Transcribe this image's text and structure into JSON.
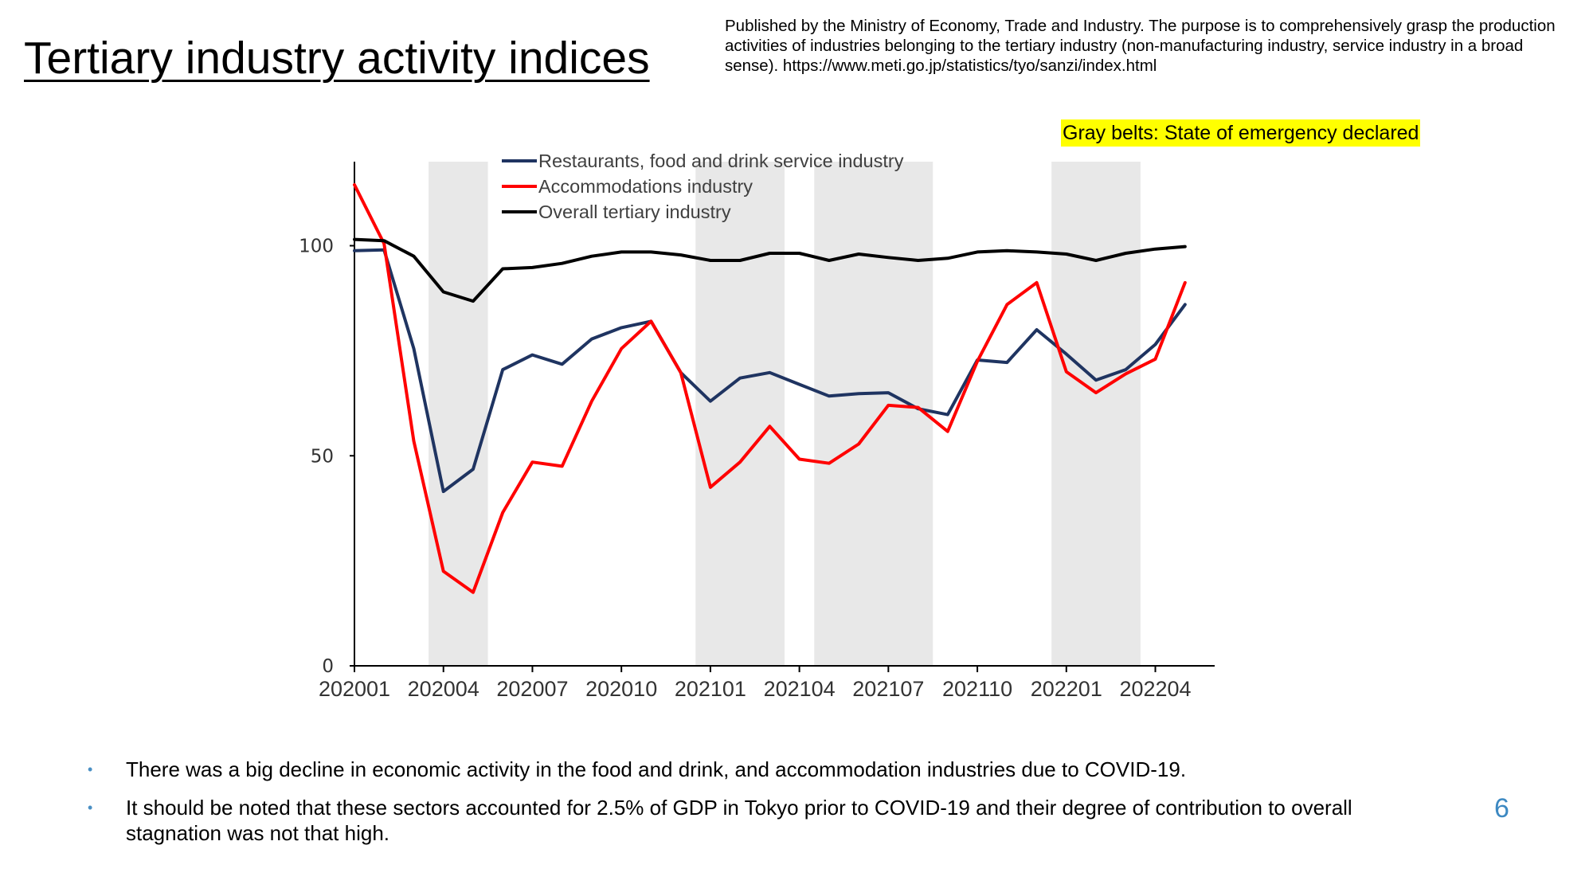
{
  "title": "Tertiary industry activity indices",
  "source_note": "Published by the Ministry of Economy, Trade and Industry. The purpose is to comprehensively grasp the production activities of industries belonging to the tertiary industry (non-manufacturing industry, service industry in a broad sense). https://www.meti.go.jp/statistics/tyo/sanzi/index.html",
  "emergency_note": "Gray belts: State of emergency declared",
  "bullets": [
    "There was a big decline in economic activity in the food and drink, and accommodation industries due to COVID-19.",
    "It should be noted that these sectors accounted for 2.5% of GDP in Tokyo prior to COVID-19 and their degree of contribution to overall stagnation was not that high."
  ],
  "page_number": "6",
  "colors": {
    "restaurants": "#1f3461",
    "accommodations": "#ff0000",
    "overall": "#000000",
    "belt": "#e8e8e8",
    "bullet": "#4a8fc4",
    "page_number": "#3d89c2",
    "highlight": "#ffff00"
  },
  "chart_data": {
    "type": "line",
    "x": [
      "202001",
      "202002",
      "202003",
      "202004",
      "202005",
      "202006",
      "202007",
      "202008",
      "202009",
      "202010",
      "202011",
      "202012",
      "202101",
      "202102",
      "202103",
      "202104",
      "202105",
      "202106",
      "202107",
      "202108",
      "202109",
      "202110",
      "202111",
      "202112",
      "202201",
      "202202",
      "202203",
      "202204",
      "202205"
    ],
    "x_tick_labels": [
      "202001",
      "202004",
      "202007",
      "202010",
      "202101",
      "202104",
      "202107",
      "202110",
      "202201",
      "202204"
    ],
    "y_ticks": [
      0,
      50,
      100
    ],
    "ylim": [
      0,
      120
    ],
    "series": [
      {
        "name": "Restaurants, food and drink service industry",
        "color": "#1f3461",
        "values": [
          98.8,
          99.0,
          75.5,
          41.5,
          46.8,
          70.5,
          74.0,
          71.8,
          77.8,
          80.5,
          82.0,
          69.8,
          63.0,
          68.5,
          69.8,
          67.0,
          64.2,
          64.8,
          65.0,
          61.2,
          59.8,
          72.8,
          72.2,
          80.0,
          74.2,
          68.0,
          70.5,
          76.5,
          86.0
        ]
      },
      {
        "name": "Accommodations industry",
        "color": "#ff0000",
        "values": [
          114.5,
          100.5,
          53.5,
          22.5,
          17.5,
          36.5,
          48.5,
          47.5,
          63.0,
          75.5,
          82.0,
          69.8,
          42.5,
          48.5,
          57.0,
          49.2,
          48.2,
          52.8,
          62.0,
          61.5,
          55.8,
          72.5,
          86.0,
          91.2,
          70.0,
          65.0,
          69.5,
          73.0,
          91.2
        ]
      },
      {
        "name": "Overall tertiary industry",
        "color": "#000000",
        "values": [
          101.5,
          101.2,
          97.5,
          89.0,
          86.8,
          94.5,
          94.8,
          95.8,
          97.5,
          98.5,
          98.5,
          97.8,
          96.5,
          96.5,
          98.2,
          98.2,
          96.5,
          98.0,
          97.2,
          96.5,
          97.0,
          98.5,
          98.8,
          98.5,
          98.0,
          96.5,
          98.2,
          99.2,
          99.8
        ]
      }
    ],
    "emergency_periods": [
      [
        "202004",
        "202005"
      ],
      [
        "202101",
        "202103"
      ],
      [
        "202105",
        "202108"
      ],
      [
        "202201",
        "202203"
      ]
    ],
    "legend_position": "top-left"
  }
}
